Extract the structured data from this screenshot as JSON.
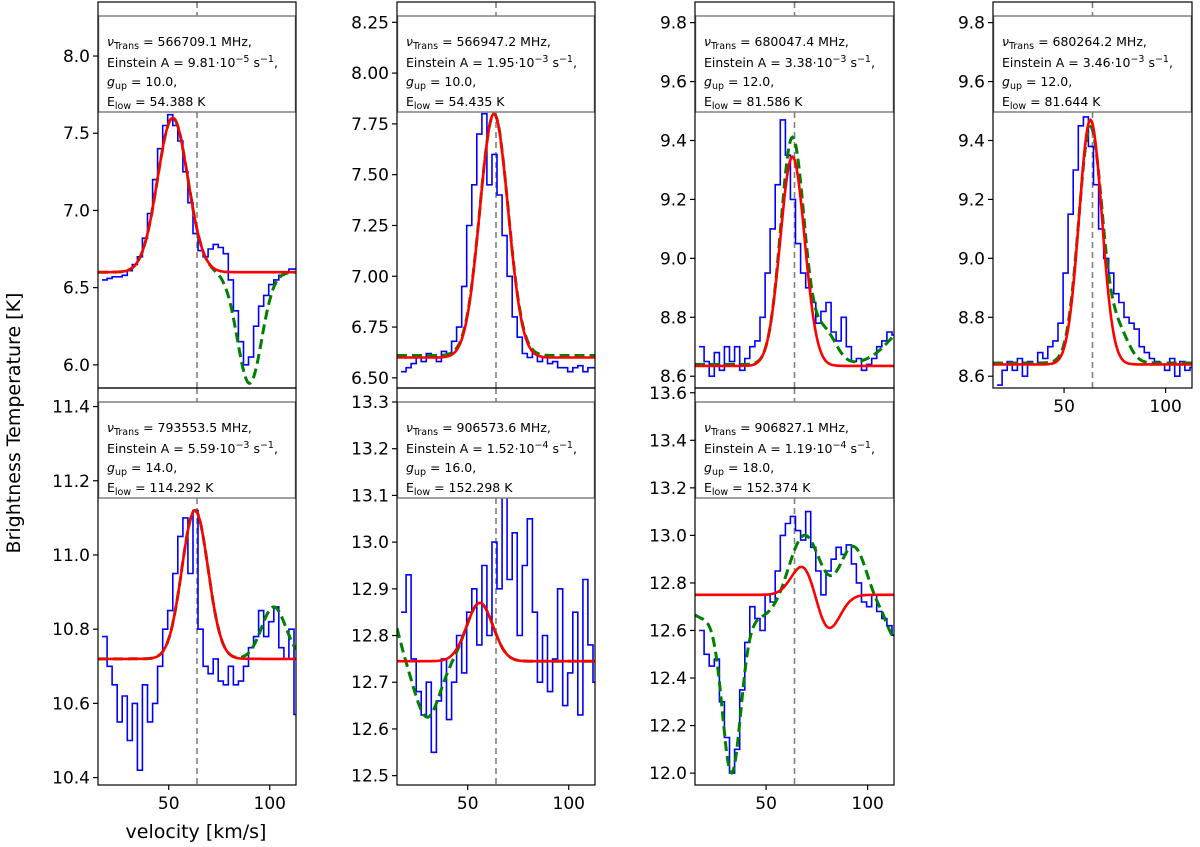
{
  "figure": {
    "ylabel": "Brightness Temperature [K]",
    "xlabel": "velocity [km/s]"
  },
  "colors": {
    "observed": "#0000ff",
    "model_red": "#ff0000",
    "model_green": "#008000",
    "marker_line": "#808080"
  },
  "chart_data": [
    {
      "type": "line",
      "panel": "row1-col1",
      "xlim": [
        15,
        113
      ],
      "ylim": [
        5.85,
        8.35
      ],
      "xticks": [],
      "yticks": [
        6.0,
        6.5,
        7.0,
        7.5,
        8.0
      ],
      "ytick_labels": [
        "6.0",
        "6.5",
        "7.0",
        "7.5",
        "8.0"
      ],
      "v_marker": 64,
      "annotation": [
        "νTrans = 566709.1 MHz,",
        "Einstein A = 9.81·10⁻⁵ s⁻¹,",
        "gup = 10.0,",
        "Elow = 54.388 K"
      ],
      "gauss_red": [
        {
          "base": 6.6,
          "amp": 1.0,
          "center": 52,
          "sigma": 7.5
        }
      ],
      "gauss_green": [
        {
          "base": 6.6,
          "amp": 1.0,
          "center": 52,
          "sigma": 7.5
        },
        {
          "amp": -0.72,
          "center": 90,
          "sigma": 6
        }
      ],
      "observed": {
        "x0": 17,
        "dx": 2.5,
        "y": [
          6.55,
          6.56,
          6.57,
          6.57,
          6.58,
          6.61,
          6.65,
          6.7,
          6.82,
          6.98,
          7.2,
          7.4,
          7.55,
          7.62,
          7.55,
          7.45,
          7.25,
          7.05,
          6.85,
          6.74,
          6.7,
          6.75,
          6.78,
          6.76,
          6.72,
          6.55,
          6.35,
          6.15,
          6.0,
          6.05,
          6.25,
          6.38,
          6.45,
          6.52,
          6.55,
          6.58,
          6.6,
          6.62,
          6.62
        ]
      }
    },
    {
      "type": "line",
      "panel": "row1-col2",
      "xlim": [
        15,
        113
      ],
      "ylim": [
        6.45,
        8.35
      ],
      "xticks": [],
      "yticks": [
        6.5,
        6.75,
        7.0,
        7.25,
        7.5,
        7.75,
        8.0,
        8.25
      ],
      "ytick_labels": [
        "6.50",
        "6.75",
        "7.00",
        "7.25",
        "7.50",
        "7.75",
        "8.00",
        "8.25"
      ],
      "v_marker": 64,
      "annotation": [
        "νTrans = 566947.2 MHz,",
        "Einstein A = 1.95·10⁻³ s⁻¹,",
        "gup = 10.0,",
        "Elow = 54.435 K"
      ],
      "gauss_red": [
        {
          "base": 6.6,
          "amp": 1.2,
          "center": 63,
          "sigma": 7
        }
      ],
      "gauss_green": [
        {
          "base": 6.61,
          "amp": 1.19,
          "center": 63,
          "sigma": 7
        }
      ],
      "observed": {
        "x0": 17,
        "dx": 2.5,
        "y": [
          6.53,
          6.55,
          6.57,
          6.6,
          6.58,
          6.62,
          6.6,
          6.58,
          6.63,
          6.62,
          6.68,
          6.75,
          6.95,
          7.25,
          7.45,
          7.7,
          7.8,
          7.45,
          7.6,
          7.4,
          7.2,
          7.0,
          6.8,
          6.7,
          6.62,
          6.6,
          6.62,
          6.58,
          6.6,
          6.57,
          6.58,
          6.55,
          6.55,
          6.53,
          6.55,
          6.56,
          6.53,
          6.55,
          6.55
        ]
      }
    },
    {
      "type": "line",
      "panel": "row1-col3",
      "xlim": [
        15,
        113
      ],
      "ylim": [
        8.56,
        9.87
      ],
      "xticks": [],
      "yticks": [
        8.6,
        8.8,
        9.0,
        9.2,
        9.4,
        9.6,
        9.8
      ],
      "ytick_labels": [
        "8.6",
        "8.8",
        "9.0",
        "9.2",
        "9.4",
        "9.6",
        "9.8"
      ],
      "v_marker": 64,
      "annotation": [
        "νTrans = 680047.4 MHz,",
        "Einstein A = 3.38·10⁻³ s⁻¹,",
        "gup = 12.0,",
        "Elow = 81.586 K"
      ],
      "gauss_red": [
        {
          "base": 8.635,
          "amp": 0.71,
          "center": 63,
          "sigma": 6
        }
      ],
      "gauss_green": [
        {
          "base": 8.64,
          "amp": 0.77,
          "center": 63,
          "sigma": 5.8
        },
        {
          "amp": 0.11,
          "center": 79,
          "sigma": 5.5
        },
        {
          "amp": 0.15,
          "center": 124,
          "sigma": 12
        }
      ],
      "observed": {
        "x0": 17,
        "dx": 2.5,
        "y": [
          8.7,
          8.65,
          8.6,
          8.68,
          8.62,
          8.7,
          8.65,
          8.7,
          8.62,
          8.66,
          8.7,
          8.72,
          8.8,
          8.95,
          9.1,
          9.25,
          9.47,
          9.35,
          9.2,
          9.05,
          8.95,
          8.9,
          8.85,
          8.78,
          8.82,
          8.85,
          8.75,
          8.72,
          8.8,
          8.7,
          8.65,
          8.66,
          8.62,
          8.64,
          8.66,
          8.7,
          8.72,
          8.75,
          8.74
        ]
      }
    },
    {
      "type": "line",
      "panel": "row1-col4",
      "xlim": [
        15,
        113
      ],
      "ylim": [
        8.56,
        9.87
      ],
      "xticks": [
        50,
        100
      ],
      "xtick_labels": [
        "50",
        "100"
      ],
      "yticks": [
        8.6,
        8.8,
        9.0,
        9.2,
        9.4,
        9.6,
        9.8
      ],
      "ytick_labels": [
        "8.6",
        "8.8",
        "9.0",
        "9.2",
        "9.4",
        "9.6",
        "9.8"
      ],
      "v_marker": 64,
      "annotation": [
        "νTrans = 680264.2 MHz,",
        "Einstein A = 3.46·10⁻³ s⁻¹,",
        "gup = 12.0,",
        "Elow = 81.644 K"
      ],
      "gauss_red": [
        {
          "base": 8.64,
          "amp": 0.83,
          "center": 63,
          "sigma": 5.6
        }
      ],
      "gauss_green": [
        {
          "base": 8.645,
          "amp": 0.8,
          "center": 63,
          "sigma": 5.8
        },
        {
          "amp": 0.1,
          "center": 77,
          "sigma": 5
        }
      ],
      "observed": {
        "x0": 17,
        "dx": 2.5,
        "y": [
          8.57,
          8.62,
          8.65,
          8.62,
          8.66,
          8.6,
          8.65,
          8.64,
          8.68,
          8.66,
          8.7,
          8.72,
          8.78,
          8.95,
          9.15,
          9.3,
          9.45,
          9.48,
          9.38,
          9.25,
          9.1,
          9.0,
          8.95,
          8.88,
          8.85,
          8.8,
          8.78,
          8.76,
          8.7,
          8.68,
          8.66,
          8.65,
          8.64,
          8.62,
          8.66,
          8.6,
          8.65,
          8.62,
          8.63
        ]
      }
    },
    {
      "type": "line",
      "panel": "row2-col1",
      "xlim": [
        15,
        113
      ],
      "ylim": [
        10.38,
        11.45
      ],
      "xticks": [
        50,
        100
      ],
      "xtick_labels": [
        "50",
        "100"
      ],
      "yticks": [
        10.4,
        10.6,
        10.8,
        11.0,
        11.2,
        11.4
      ],
      "ytick_labels": [
        "10.4",
        "10.6",
        "10.8",
        "11.0",
        "11.2",
        "11.4"
      ],
      "v_marker": 64,
      "annotation": [
        "νTrans = 793553.5 MHz,",
        "Einstein A = 5.59·10⁻³ s⁻¹,",
        "gup = 14.0,",
        "Elow = 114.292 K"
      ],
      "gauss_red": [
        {
          "base": 10.72,
          "amp": 0.4,
          "center": 63,
          "sigma": 6.5
        }
      ],
      "gauss_green": [
        {
          "base": 10.72,
          "amp": 0.4,
          "center": 63,
          "sigma": 6.5
        },
        {
          "amp": 0.14,
          "center": 102,
          "sigma": 6
        }
      ],
      "observed": {
        "x0": 17,
        "dx": 2.5,
        "y": [
          10.78,
          10.7,
          10.65,
          10.55,
          10.62,
          10.5,
          10.6,
          10.42,
          10.65,
          10.55,
          10.6,
          10.7,
          10.8,
          10.85,
          10.95,
          11.05,
          11.1,
          10.95,
          11.12,
          10.8,
          10.7,
          10.68,
          10.72,
          10.66,
          10.65,
          10.7,
          10.65,
          10.66,
          10.7,
          10.75,
          10.78,
          10.85,
          10.78,
          10.82,
          10.86,
          10.75,
          10.72,
          10.8,
          10.57
        ]
      }
    },
    {
      "type": "line",
      "panel": "row2-col2",
      "xlim": [
        15,
        113
      ],
      "ylim": [
        12.48,
        13.33
      ],
      "xticks": [
        50,
        100
      ],
      "xtick_labels": [
        "50",
        "100"
      ],
      "yticks": [
        12.5,
        12.6,
        12.7,
        12.8,
        12.9,
        13.0,
        13.1,
        13.2,
        13.3
      ],
      "ytick_labels": [
        "12.5",
        "12.6",
        "12.7",
        "12.8",
        "12.9",
        "13.0",
        "13.1",
        "13.2",
        "13.3"
      ],
      "v_marker": 64,
      "annotation": [
        "νTrans = 906573.6 MHz,",
        "Einstein A = 1.52·10⁻⁴ s⁻¹,",
        "gup = 16.0,",
        "Elow = 152.298 K"
      ],
      "gauss_red": [
        {
          "base": 12.745,
          "amp": 0.125,
          "center": 56,
          "sigma": 6.5
        }
      ],
      "gauss_green": [
        {
          "base": 12.745,
          "amp": 0.125,
          "center": 56,
          "sigma": 6.5
        },
        {
          "amp": -0.12,
          "center": 30,
          "sigma": 6
        },
        {
          "amp": 0.15,
          "center": 8,
          "sigma": 6
        }
      ],
      "observed": {
        "x0": 17,
        "dx": 2.5,
        "y": [
          12.85,
          12.93,
          12.75,
          12.68,
          12.63,
          12.7,
          12.55,
          12.66,
          12.75,
          12.62,
          12.7,
          12.8,
          12.72,
          12.85,
          12.9,
          12.78,
          12.95,
          12.8,
          13.0,
          12.9,
          13.1,
          12.92,
          13.02,
          12.8,
          12.95,
          13.05,
          12.85,
          12.7,
          12.8,
          12.68,
          12.75,
          12.9,
          12.65,
          12.72,
          12.85,
          12.63,
          12.92,
          12.78,
          12.7
        ]
      }
    },
    {
      "type": "line",
      "panel": "row2-col3",
      "xlim": [
        15,
        113
      ],
      "ylim": [
        11.95,
        13.62
      ],
      "xticks": [
        50,
        100
      ],
      "xtick_labels": [
        "50",
        "100"
      ],
      "yticks": [
        12.0,
        12.2,
        12.4,
        12.6,
        12.8,
        13.0,
        13.2,
        13.4,
        13.6
      ],
      "ytick_labels": [
        "12.0",
        "12.2",
        "12.4",
        "12.6",
        "12.8",
        "13.0",
        "13.2",
        "13.4",
        "13.6"
      ],
      "v_marker": 64,
      "annotation": [
        "νTrans = 906827.1 MHz,",
        "Einstein A = 1.19·10⁻⁴ s⁻¹,",
        "gup = 18.0,",
        "Elow = 152.374 K"
      ],
      "gauss_red": [
        {
          "base": 12.75,
          "amp": 0.14,
          "center": 69,
          "sigma": 6
        },
        {
          "amp": -0.16,
          "center": 80,
          "sigma": 6
        }
      ],
      "gauss_green": [
        {
          "base": 12.65,
          "amp": 0.35,
          "center": 69,
          "sigma": 8
        },
        {
          "amp": 0.3,
          "center": 93,
          "sigma": 7
        },
        {
          "amp": -0.65,
          "center": 33,
          "sigma": 4.5
        },
        {
          "amp": 0.12,
          "center": 5,
          "sigma": 5
        },
        {
          "amp": -0.08,
          "center": 113,
          "sigma": 3
        }
      ],
      "observed": {
        "x0": 17,
        "dx": 2.5,
        "y": [
          12.6,
          12.5,
          12.45,
          12.48,
          12.3,
          12.15,
          12.0,
          12.1,
          12.35,
          12.55,
          12.7,
          12.65,
          12.6,
          12.75,
          12.72,
          12.85,
          13.0,
          13.05,
          13.08,
          13.02,
          12.98,
          13.1,
          12.95,
          12.85,
          12.75,
          12.85,
          12.9,
          12.95,
          12.92,
          12.96,
          12.88,
          12.8,
          12.72,
          12.7,
          12.75,
          12.68,
          12.65,
          12.62,
          12.58
        ]
      }
    }
  ]
}
